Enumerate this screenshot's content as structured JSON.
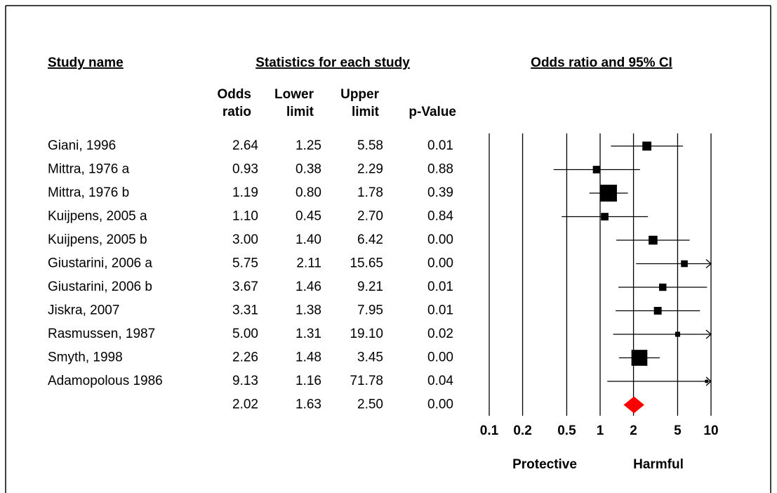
{
  "chart_data": {
    "type": "forest",
    "headers": {
      "study": "Study name",
      "statistics": "Statistics for each study",
      "plot": "Odds ratio and 95% CI"
    },
    "categories": [
      "Giani, 1996",
      "Mittra, 1976 a",
      "Mittra, 1976 b",
      "Kuijpens, 2005 a",
      "Kuijpens, 2005 b",
      "Giustarini, 2006 a",
      "Giustarini, 2006 b",
      "Jiskra, 2007",
      "Rasmussen, 1987",
      "Smyth, 1998",
      "Adamopolous 1986",
      null
    ],
    "series": [
      {
        "name": "Odds ratio",
        "values": [
          2.64,
          0.93,
          1.19,
          1.1,
          3.0,
          5.75,
          3.67,
          3.31,
          5.0,
          2.26,
          9.13,
          2.02
        ],
        "value_labels": [
          "2.64",
          "0.93",
          "1.19",
          "1.10",
          "3.00",
          "5.75",
          "3.67",
          "3.31",
          "5.00",
          "2.26",
          "9.13",
          "2.02"
        ]
      },
      {
        "name": "Lower limit",
        "values": [
          1.25,
          0.38,
          0.8,
          0.45,
          1.4,
          2.11,
          1.46,
          1.38,
          1.31,
          1.48,
          1.16,
          1.63
        ],
        "value_labels": [
          "1.25",
          "0.38",
          "0.80",
          "0.45",
          "1.40",
          "2.11",
          "1.46",
          "1.38",
          "1.31",
          "1.48",
          "1.16",
          "1.63"
        ]
      },
      {
        "name": "Upper limit",
        "values": [
          5.58,
          2.29,
          1.78,
          2.7,
          6.42,
          15.65,
          9.21,
          7.95,
          19.1,
          3.45,
          71.78,
          2.5
        ],
        "value_labels": [
          "5.58",
          "2.29",
          "1.78",
          "2.70",
          "6.42",
          "15.65",
          "9.21",
          "7.95",
          "19.10",
          "3.45",
          "71.78",
          "2.50"
        ]
      },
      {
        "name": "p-Value",
        "values": [
          0.01,
          0.88,
          0.39,
          0.84,
          0,
          0,
          0.01,
          0.01,
          0.02,
          0,
          0.04,
          0
        ],
        "value_labels": [
          "0.01",
          "0.88",
          "0.39",
          "0.84",
          "0.00",
          "0.00",
          "0.01",
          "0.01",
          "0.02",
          "0.00",
          "0.04",
          "0.00"
        ]
      }
    ],
    "xlim": [
      0.1,
      10
    ],
    "xticks": [
      0.1,
      0.2,
      0.5,
      1,
      2,
      5,
      10
    ],
    "log_scale": true,
    "annotations": [
      "Protective",
      "Harmful"
    ],
    "marker_color": "#000000",
    "summary_color": "#ff0000"
  }
}
